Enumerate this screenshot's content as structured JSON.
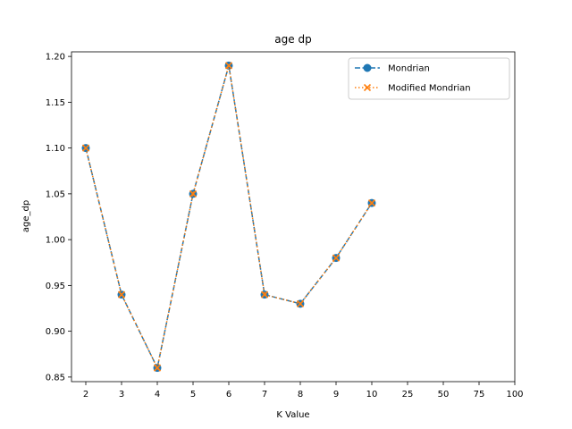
{
  "chart_data": {
    "type": "line",
    "title": "age dp",
    "xlabel": "K Value",
    "ylabel": "age_dp",
    "x_categories": [
      "2",
      "3",
      "4",
      "5",
      "6",
      "7",
      "8",
      "9",
      "10",
      "25",
      "50",
      "75",
      "100"
    ],
    "yticks": [
      "0.85",
      "0.90",
      "0.95",
      "1.00",
      "1.05",
      "1.10",
      "1.15",
      "1.20"
    ],
    "ylim": [
      0.845,
      1.205
    ],
    "legend_position": "upper right",
    "series": [
      {
        "name": "Mondrian",
        "color": "#1f77b4",
        "line_style": "dashed",
        "marker": "circle",
        "x": [
          "2",
          "3",
          "4",
          "5",
          "6",
          "7",
          "8",
          "9",
          "10"
        ],
        "values": [
          1.1,
          0.94,
          0.86,
          1.05,
          1.19,
          0.94,
          0.93,
          0.98,
          1.04
        ]
      },
      {
        "name": "Modified Mondrian",
        "color": "#ff7f0e",
        "line_style": "dotted",
        "marker": "x",
        "x": [
          "2",
          "3",
          "4",
          "5",
          "6",
          "7",
          "8",
          "9",
          "10"
        ],
        "values": [
          1.1,
          0.94,
          0.86,
          1.05,
          1.19,
          0.94,
          0.93,
          0.98,
          1.04
        ]
      }
    ]
  }
}
